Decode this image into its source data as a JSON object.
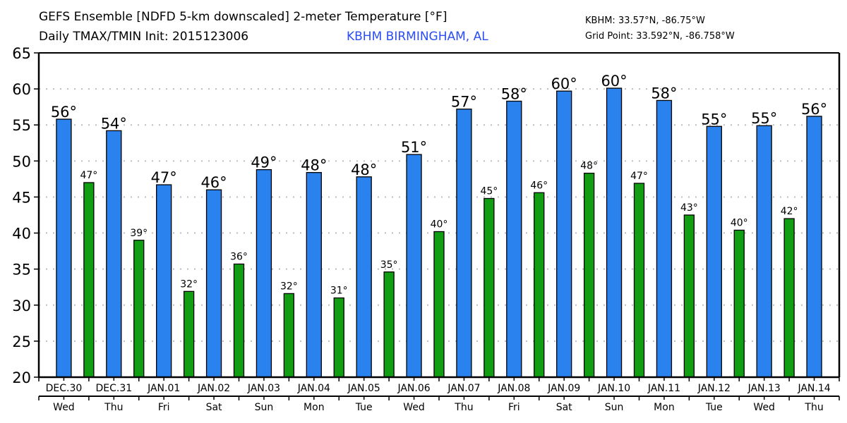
{
  "header": {
    "title_line1": "GEFS Ensemble [NDFD 5-km downscaled] 2-meter Temperature [°F]",
    "title_line2": "Daily TMAX/TMIN Init: 2015123006",
    "station_name": "KBHM BIRMINGHAM, AL",
    "station_coords": "KBHM: 33.57°N, -86.75°W",
    "grid_point": "Grid Point: 33.592°N, -86.758°W"
  },
  "colors": {
    "tmax": "#2a82ee",
    "tmin": "#129e12",
    "station_text": "#2a4df5",
    "grid": "#bdbdbd"
  },
  "chart_data": {
    "type": "bar",
    "title": "GEFS Ensemble [NDFD 5-km downscaled] 2-meter Temperature [°F]",
    "subtitle": "Daily TMAX/TMIN Init: 2015123006",
    "xlabel": "",
    "ylabel": "",
    "ylim": [
      20,
      65
    ],
    "yticks": [
      20,
      25,
      30,
      35,
      40,
      45,
      50,
      55,
      60,
      65
    ],
    "grid": "horizontal dotted",
    "categories": [
      "DEC.30",
      "DEC.31",
      "JAN.01",
      "JAN.02",
      "JAN.03",
      "JAN.04",
      "JAN.05",
      "JAN.06",
      "JAN.07",
      "JAN.08",
      "JAN.09",
      "JAN.10",
      "JAN.11",
      "JAN.12",
      "JAN.13",
      "JAN.14"
    ],
    "weekdays": [
      "Wed",
      "Thu",
      "Fri",
      "Sat",
      "Sun",
      "Mon",
      "Tue",
      "Wed",
      "Thu",
      "Fri",
      "Sat",
      "Sun",
      "Mon",
      "Tue",
      "Wed",
      "Thu"
    ],
    "series": [
      {
        "name": "TMAX",
        "values": [
          55.8,
          54.2,
          46.7,
          46.0,
          48.8,
          48.4,
          47.8,
          50.9,
          57.2,
          58.3,
          59.7,
          60.1,
          58.4,
          54.8,
          54.9,
          56.2
        ],
        "labels": [
          "56°",
          "54°",
          "47°",
          "46°",
          "49°",
          "48°",
          "48°",
          "51°",
          "57°",
          "58°",
          "60°",
          "60°",
          "58°",
          "55°",
          "55°",
          "56°"
        ]
      },
      {
        "name": "TMIN",
        "values": [
          47.0,
          39.0,
          31.9,
          35.7,
          31.6,
          31.0,
          34.6,
          40.2,
          44.8,
          45.6,
          48.3,
          46.9,
          42.5,
          40.4,
          42.0
        ],
        "labels": [
          "47°",
          "39°",
          "32°",
          "36°",
          "32°",
          "31°",
          "35°",
          "40°",
          "45°",
          "46°",
          "48°",
          "47°",
          "43°",
          "40°",
          "42°"
        ]
      }
    ]
  }
}
